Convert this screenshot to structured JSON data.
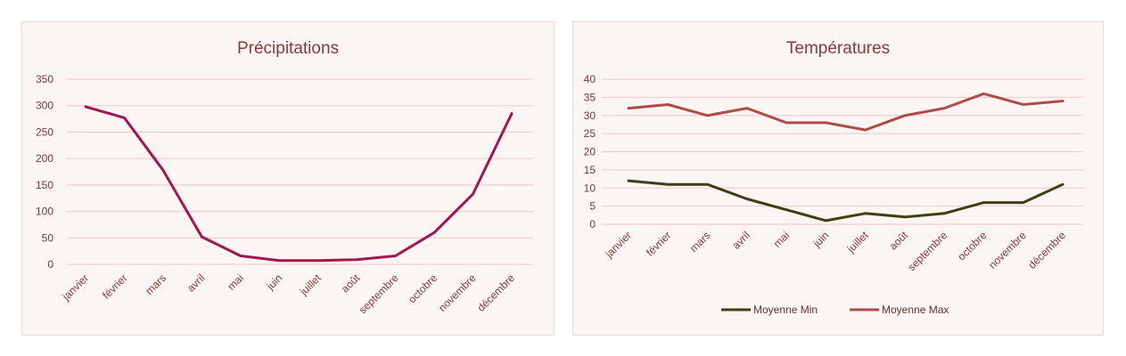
{
  "colors": {
    "precip_line": "#a3164d",
    "min_line": "#3f3f12",
    "max_line": "#b04b4b",
    "grid": "#edc9c6",
    "panel_bg": "#fbf5f4"
  },
  "chart_data": [
    {
      "type": "line",
      "title": "Précipitations",
      "categories": [
        "janvier",
        "février",
        "mars",
        "avril",
        "mai",
        "juin",
        "juillet",
        "août",
        "septembre",
        "octobre",
        "novembre",
        "décembre"
      ],
      "series": [
        {
          "values": [
            298,
            277,
            178,
            52,
            16,
            7,
            7,
            9,
            16,
            60,
            133,
            285
          ]
        }
      ],
      "ylim": [
        0,
        350
      ],
      "yticks": [
        0,
        50,
        100,
        150,
        200,
        250,
        300,
        350
      ],
      "grid": true,
      "legend": "none"
    },
    {
      "type": "line",
      "title": "Températures",
      "categories": [
        "janvier",
        "février",
        "mars",
        "avril",
        "mai",
        "juin",
        "juillet",
        "août",
        "septembre",
        "octobre",
        "novembre",
        "décembre"
      ],
      "series": [
        {
          "name": "Moyenne Min",
          "values": [
            12,
            11,
            11,
            7,
            4,
            1,
            3,
            2,
            3,
            6,
            6,
            11
          ]
        },
        {
          "name": "Moyenne Max",
          "values": [
            32,
            33,
            30,
            32,
            28,
            28,
            26,
            30,
            32,
            36,
            33,
            34
          ]
        }
      ],
      "ylim": [
        0,
        40
      ],
      "yticks": [
        0,
        5,
        10,
        15,
        20,
        25,
        30,
        35,
        40
      ],
      "grid": true,
      "legend": "bottom"
    }
  ]
}
